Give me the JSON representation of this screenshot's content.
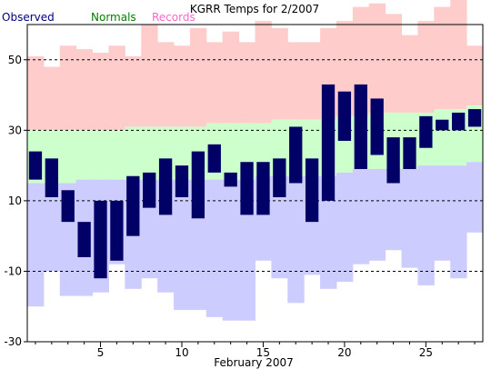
{
  "chart_data": {
    "type": "bar",
    "title": "KGRR Temps for 2/2007",
    "xlabel": "February 2007",
    "ylabel": "",
    "ylim": [
      -30,
      60
    ],
    "xlim": [
      0.5,
      28.5
    ],
    "yticks": [
      50,
      30,
      10,
      -10,
      -30
    ],
    "xticks": [
      5,
      10,
      15,
      20,
      25
    ],
    "gridlines_y": [
      50,
      30,
      10,
      -10
    ],
    "grid": "dashed horizontal",
    "legend": [
      "Observed",
      "Normals",
      "Records"
    ],
    "legend_position": "top-left",
    "colors": {
      "observed": "#000066",
      "normals_high": "#ccffcc",
      "normals_low": "#ccccff",
      "records_high": "#ffcccc",
      "records_low": "#ccccff",
      "legend_observed": "#000080",
      "legend_normals": "#008000",
      "legend_records": "#ff66cc",
      "grid": "#000000"
    },
    "days": [
      1,
      2,
      3,
      4,
      5,
      6,
      7,
      8,
      9,
      10,
      11,
      12,
      13,
      14,
      15,
      16,
      17,
      18,
      19,
      20,
      21,
      22,
      23,
      24,
      25,
      26,
      27,
      28
    ],
    "observed": {
      "high": [
        24,
        22,
        13,
        4,
        10,
        10,
        17,
        18,
        22,
        20,
        24,
        26,
        18,
        21,
        21,
        22,
        31,
        22,
        43,
        41,
        43,
        39,
        28,
        28,
        34,
        33,
        35,
        36
      ],
      "low": [
        16,
        11,
        4,
        -6,
        -12,
        -7,
        0,
        8,
        6,
        11,
        5,
        18,
        14,
        6,
        6,
        11,
        15,
        4,
        10,
        27,
        19,
        23,
        15,
        19,
        25,
        30,
        30,
        31
      ]
    },
    "normals": {
      "high": [
        30,
        30,
        30,
        30,
        30,
        30,
        31,
        31,
        31,
        31,
        31,
        32,
        32,
        32,
        32,
        33,
        33,
        33,
        33,
        34,
        34,
        35,
        35,
        35,
        35,
        36,
        36,
        37
      ],
      "low": [
        15,
        15,
        15,
        16,
        16,
        16,
        16,
        16,
        16,
        16,
        16,
        16,
        16,
        16,
        17,
        17,
        17,
        17,
        17,
        18,
        19,
        19,
        19,
        19,
        20,
        20,
        20,
        21
      ]
    },
    "records": {
      "high": [
        51,
        48,
        54,
        53,
        52,
        54,
        51,
        60,
        55,
        54,
        59,
        55,
        58,
        55,
        61,
        59,
        55,
        55,
        59,
        61,
        65,
        66,
        63,
        57,
        61,
        65,
        67,
        54
      ],
      "low": [
        -20,
        -10,
        -17,
        -17,
        -16,
        -8,
        -15,
        -12,
        -16,
        -21,
        -21,
        -23,
        -24,
        -24,
        -7,
        -12,
        -19,
        -11,
        -15,
        -13,
        -8,
        -7,
        -4,
        -9,
        -14,
        -7,
        -12,
        1
      ]
    }
  }
}
